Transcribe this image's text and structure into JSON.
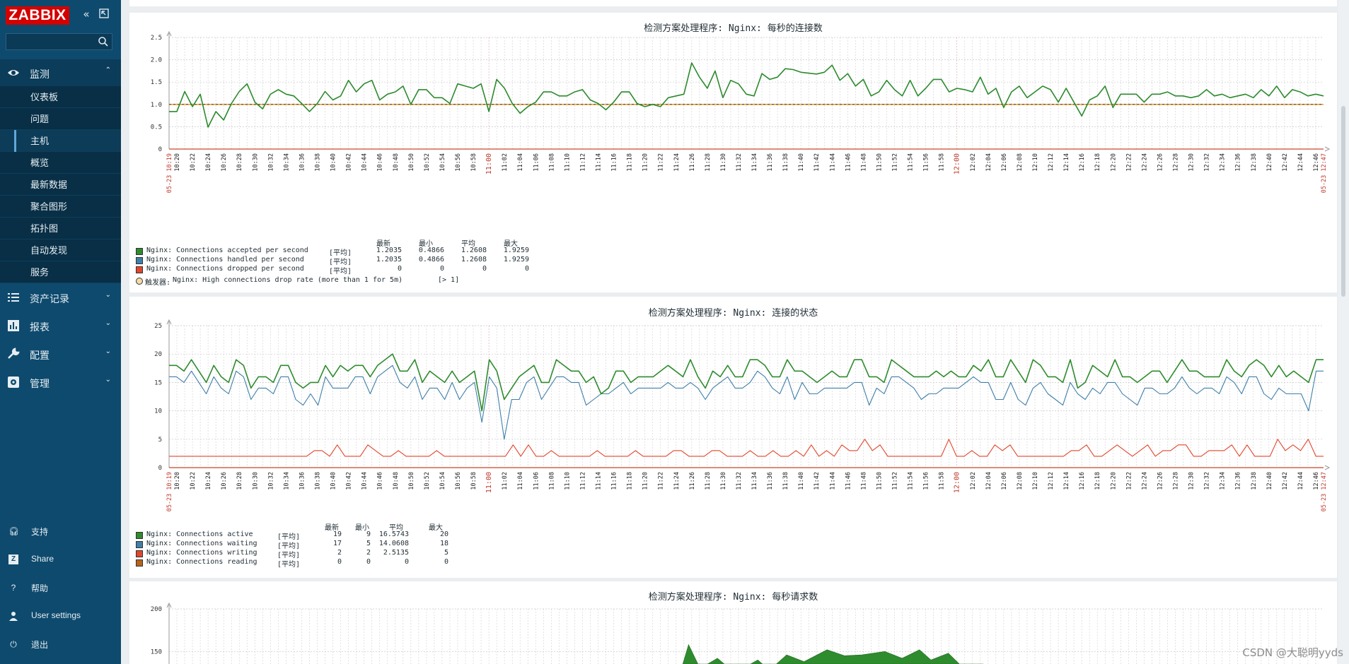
{
  "app": {
    "logo": "ZABBIX"
  },
  "sidebar": {
    "sections": [
      {
        "label": "监测",
        "icon": "eye-icon",
        "expanded": true
      },
      {
        "label": "资产记录",
        "icon": "list-icon"
      },
      {
        "label": "报表",
        "icon": "bar-chart-icon"
      },
      {
        "label": "配置",
        "icon": "wrench-icon"
      },
      {
        "label": "管理",
        "icon": "gear-icon"
      }
    ],
    "monitoring_items": [
      "仪表板",
      "问题",
      "主机",
      "概览",
      "最新数据",
      "聚合图形",
      "拓扑图",
      "自动发现",
      "服务"
    ],
    "active_item": "主机",
    "bottom": [
      {
        "label": "支持",
        "icon": "headset-icon"
      },
      {
        "label": "Share",
        "icon": "zabbix-share-icon"
      },
      {
        "label": "帮助",
        "icon": "help-icon"
      },
      {
        "label": "User settings",
        "icon": "user-icon"
      },
      {
        "label": "退出",
        "icon": "power-icon"
      }
    ]
  },
  "graphs": {
    "g1": {
      "title": "检测方案处理程序: Nginx: 每秒的连接数",
      "legend_header": [
        "最新",
        "最小",
        "平均",
        "最大"
      ],
      "rows": [
        {
          "name": "Nginx: Connections accepted per second",
          "func": "[平均]",
          "last": "1.2035",
          "min": "0.4866",
          "avg": "1.2608",
          "max": "1.9259",
          "color": "#2e8b2e"
        },
        {
          "name": "Nginx: Connections handled per second",
          "func": "[平均]",
          "last": "1.2035",
          "min": "0.4866",
          "avg": "1.2608",
          "max": "1.9259",
          "color": "#3f7fa8"
        },
        {
          "name": "Nginx: Connections dropped per second",
          "func": "[平均]",
          "last": "0",
          "min": "0",
          "avg": "0",
          "max": "0",
          "color": "#e2452b"
        }
      ],
      "trigger": {
        "prefix": "触发器:",
        "text": "Nginx: High connections drop rate (more than 1 for 5m)",
        "cond": "[> 1]",
        "color": "#f7d9a3"
      }
    },
    "g2": {
      "title": "检测方案处理程序: Nginx: 连接的状态",
      "legend_header": [
        "最新",
        "最小",
        "平均",
        "最大"
      ],
      "rows": [
        {
          "name": "Nginx: Connections active",
          "func": "[平均]",
          "last": "19",
          "min": "9",
          "avg": "16.5743",
          "max": "20",
          "color": "#2e8b2e"
        },
        {
          "name": "Nginx: Connections waiting",
          "func": "[平均]",
          "last": "17",
          "min": "5",
          "avg": "14.0608",
          "max": "18",
          "color": "#3f7fa8"
        },
        {
          "name": "Nginx: Connections writing",
          "func": "[平均]",
          "last": "2",
          "min": "2",
          "avg": "2.5135",
          "max": "5",
          "color": "#e2452b"
        },
        {
          "name": "Nginx: Connections reading",
          "func": "[平均]",
          "last": "0",
          "min": "0",
          "avg": "0",
          "max": "0",
          "color": "#b8641b"
        }
      ]
    },
    "g3": {
      "title": "检测方案处理程序: Nginx: 每秒请求数"
    }
  },
  "chart_data": [
    {
      "type": "line",
      "title": "检测方案处理程序: Nginx: 每秒的连接数",
      "ylim": [
        0,
        2.5
      ],
      "yticks": [
        "0",
        "0.5",
        "1.0",
        "1.5",
        "2.0",
        "2.5"
      ],
      "x_start_label": "05-23 10:19",
      "x_end_label": "05-23 12:47",
      "hour_marks": [
        "11:00",
        "12:00"
      ],
      "trigger_value": 1,
      "series": [
        {
          "name": "Nginx: Connections accepted per second",
          "values": [
            0.84,
            0.84,
            1.29,
            0.95,
            1.23,
            0.49,
            0.84,
            0.65,
            1.02,
            1.29,
            1.46,
            1.05,
            0.9,
            1.23,
            1.33,
            1.23,
            1.19,
            1.02,
            0.84,
            1.02,
            1.29,
            1.1,
            1.19,
            1.54,
            1.28,
            1.46,
            1.54,
            1.1,
            1.23,
            1.28,
            1.41,
            1.0,
            1.33,
            1.33,
            1.15,
            1.15,
            1.02,
            1.46,
            1.41,
            1.36,
            1.46,
            0.84,
            1.56,
            1.36,
            1.02,
            0.8,
            0.95,
            1.05,
            1.28,
            1.28,
            1.19,
            1.19,
            1.28,
            1.33,
            1.1,
            1.02,
            0.88,
            1.05,
            1.28,
            1.28,
            1.02,
            0.95,
            1.0,
            0.95,
            1.15,
            1.19,
            1.23,
            1.93,
            1.61,
            1.36,
            1.75,
            1.15,
            1.54,
            1.46,
            1.23,
            1.19,
            1.69,
            1.56,
            1.61,
            1.8,
            1.78,
            1.72,
            1.7,
            1.68,
            1.72,
            1.88,
            1.54,
            1.69,
            1.41,
            1.56,
            1.19,
            1.28,
            1.54,
            1.33,
            1.19,
            1.54,
            1.19,
            1.36,
            1.56,
            1.56,
            1.28,
            1.36,
            1.33,
            1.28,
            1.61,
            1.23,
            1.36,
            0.93,
            1.28,
            1.41,
            1.15,
            1.28,
            1.41,
            1.33,
            1.05,
            1.36,
            1.05,
            0.74,
            1.1,
            1.19,
            1.41,
            0.93,
            1.23,
            1.23,
            1.23,
            1.05,
            1.23,
            1.23,
            1.28,
            1.19,
            1.19,
            1.15,
            1.19,
            1.33,
            1.19,
            1.23,
            1.15,
            1.19,
            1.23,
            1.15,
            1.33,
            1.19,
            1.41,
            1.15,
            1.33,
            1.28,
            1.19,
            1.23,
            1.19
          ]
        },
        {
          "name": "Nginx: Connections handled per second",
          "values": [
            0.84,
            0.84,
            1.29,
            0.95,
            1.23,
            0.49,
            0.84,
            0.65,
            1.02,
            1.29,
            1.46,
            1.05,
            0.9,
            1.23,
            1.33,
            1.23,
            1.19,
            1.02,
            0.84,
            1.02,
            1.29,
            1.1,
            1.19,
            1.54,
            1.28,
            1.46,
            1.54,
            1.1,
            1.23,
            1.28,
            1.41,
            1.0,
            1.33,
            1.33,
            1.15,
            1.15,
            1.02,
            1.46,
            1.41,
            1.36,
            1.46,
            0.84,
            1.56,
            1.36,
            1.02,
            0.8,
            0.95,
            1.05,
            1.28,
            1.28,
            1.19,
            1.19,
            1.28,
            1.33,
            1.1,
            1.02,
            0.88,
            1.05,
            1.28,
            1.28,
            1.02,
            0.95,
            1.0,
            0.95,
            1.15,
            1.19,
            1.23,
            1.93,
            1.61,
            1.36,
            1.75,
            1.15,
            1.54,
            1.46,
            1.23,
            1.19,
            1.69,
            1.56,
            1.61,
            1.8,
            1.78,
            1.72,
            1.7,
            1.68,
            1.72,
            1.88,
            1.54,
            1.69,
            1.41,
            1.56,
            1.19,
            1.28,
            1.54,
            1.33,
            1.19,
            1.54,
            1.19,
            1.36,
            1.56,
            1.56,
            1.28,
            1.36,
            1.33,
            1.28,
            1.61,
            1.23,
            1.36,
            0.93,
            1.28,
            1.41,
            1.15,
            1.28,
            1.41,
            1.33,
            1.05,
            1.36,
            1.05,
            0.74,
            1.1,
            1.19,
            1.41,
            0.93,
            1.23,
            1.23,
            1.23,
            1.05,
            1.23,
            1.23,
            1.28,
            1.19,
            1.19,
            1.15,
            1.19,
            1.33,
            1.19,
            1.23,
            1.15,
            1.19,
            1.23,
            1.15,
            1.33,
            1.19,
            1.41,
            1.15,
            1.33,
            1.28,
            1.19,
            1.23,
            1.19
          ]
        },
        {
          "name": "Nginx: Connections dropped per second",
          "values": [
            0,
            0
          ]
        }
      ]
    },
    {
      "type": "line",
      "title": "检测方案处理程序: Nginx: 连接的状态",
      "ylim": [
        0,
        25
      ],
      "yticks": [
        "0",
        "5",
        "10",
        "15",
        "20",
        "25"
      ],
      "x_start_label": "05-23 10:19",
      "x_end_label": "05-23 12:47",
      "hour_marks": [
        "11:00",
        "12:00"
      ],
      "series": [
        {
          "name": "Nginx: Connections active",
          "values": [
            18,
            18,
            17,
            19,
            17,
            15,
            18,
            16,
            15,
            19,
            18,
            14,
            16,
            16,
            15,
            18,
            18,
            15,
            14,
            15,
            15,
            18,
            16,
            18,
            17,
            18,
            18,
            16,
            18,
            19,
            20,
            17,
            17,
            19,
            15,
            17,
            16,
            15,
            17,
            15,
            16,
            17,
            10,
            19,
            17,
            12,
            14,
            16,
            17,
            18,
            15,
            15,
            19,
            18,
            17,
            17,
            15,
            16,
            13,
            14,
            17,
            17,
            15,
            16,
            16,
            16,
            17,
            18,
            17,
            16,
            19,
            16,
            14,
            17,
            16,
            18,
            16,
            16,
            19,
            19,
            18,
            16,
            16,
            19,
            17,
            17,
            16,
            15,
            16,
            17,
            16,
            16,
            19,
            19,
            16,
            16,
            15,
            19,
            18,
            17,
            16,
            16,
            16,
            17,
            16,
            17,
            16,
            16,
            18,
            17,
            19,
            16,
            16,
            19,
            17,
            15,
            19,
            18,
            16,
            16,
            15,
            19,
            14,
            15,
            18,
            17,
            16,
            19,
            16,
            16,
            15,
            16,
            17,
            17,
            15,
            17,
            19,
            17,
            17,
            16,
            16,
            16,
            19,
            17,
            16,
            18,
            19,
            18,
            16,
            18,
            16,
            17,
            16,
            15,
            19,
            19
          ]
        },
        {
          "name": "Nginx: Connections waiting",
          "values": [
            16,
            16,
            15,
            17,
            15,
            13,
            16,
            14,
            13,
            17,
            16,
            12,
            14,
            14,
            13,
            16,
            16,
            12,
            11,
            13,
            11,
            16,
            14,
            14,
            14,
            16,
            16,
            13,
            16,
            17,
            18,
            15,
            14,
            16,
            12,
            14,
            14,
            12,
            15,
            12,
            14,
            15,
            8,
            16,
            14,
            5,
            12,
            12,
            15,
            16,
            12,
            14,
            16,
            16,
            15,
            15,
            11,
            12,
            13,
            13,
            14,
            15,
            13,
            14,
            14,
            14,
            14,
            15,
            14,
            14,
            15,
            14,
            12,
            14,
            15,
            16,
            14,
            14,
            15,
            17,
            16,
            14,
            13,
            16,
            12,
            15,
            13,
            13,
            14,
            14,
            14,
            14,
            15,
            15,
            11,
            14,
            13,
            16,
            16,
            15,
            14,
            12,
            13,
            13,
            14,
            14,
            14,
            15,
            16,
            15,
            15,
            12,
            12,
            15,
            12,
            11,
            14,
            15,
            13,
            12,
            11,
            15,
            13,
            12,
            14,
            13,
            15,
            15,
            13,
            12,
            11,
            14,
            14,
            13,
            13,
            14,
            16,
            14,
            13,
            14,
            14,
            13,
            16,
            15,
            13,
            16,
            16,
            13,
            12,
            14,
            13,
            13,
            13,
            10,
            17,
            17
          ]
        },
        {
          "name": "Nginx: Connections writing",
          "values": [
            2,
            2,
            2,
            2,
            2,
            2,
            2,
            2,
            2,
            2,
            2,
            2,
            2,
            2,
            2,
            2,
            2,
            2,
            2,
            3,
            3,
            2,
            4,
            2,
            2,
            2,
            4,
            3,
            2,
            2,
            3,
            2,
            2,
            2,
            2,
            3,
            2,
            2,
            2,
            2,
            2,
            2,
            2,
            2,
            2,
            4,
            2,
            4,
            2,
            2,
            3,
            2,
            2,
            2,
            2,
            2,
            3,
            2,
            2,
            2,
            2,
            3,
            2,
            2,
            2,
            2,
            3,
            3,
            2,
            2,
            2,
            3,
            3,
            2,
            2,
            2,
            3,
            2,
            2,
            3,
            2,
            2,
            3,
            2,
            4,
            2,
            3,
            2,
            4,
            3,
            3,
            5,
            3,
            4,
            2,
            2,
            2,
            2,
            2,
            2,
            2,
            2,
            5,
            2,
            2,
            3,
            2,
            2,
            4,
            3,
            4,
            2,
            2,
            2,
            2,
            2,
            2,
            2,
            3,
            3,
            4,
            2,
            2,
            3,
            4,
            3,
            2,
            3,
            4,
            2,
            3,
            3,
            4,
            4,
            2,
            2,
            3,
            3,
            3,
            4,
            2,
            4,
            2,
            2,
            2,
            5,
            3,
            4,
            3,
            5,
            2,
            2
          ]
        },
        {
          "name": "Nginx: Connections reading",
          "values": [
            0,
            0
          ]
        }
      ]
    },
    {
      "type": "area",
      "title": "检测方案处理程序: Nginx: 每秒请求数",
      "ylim": [
        0,
        200
      ],
      "yticks": [
        "150",
        "200"
      ]
    }
  ],
  "watermark": "CSDN @大聪明yyds"
}
